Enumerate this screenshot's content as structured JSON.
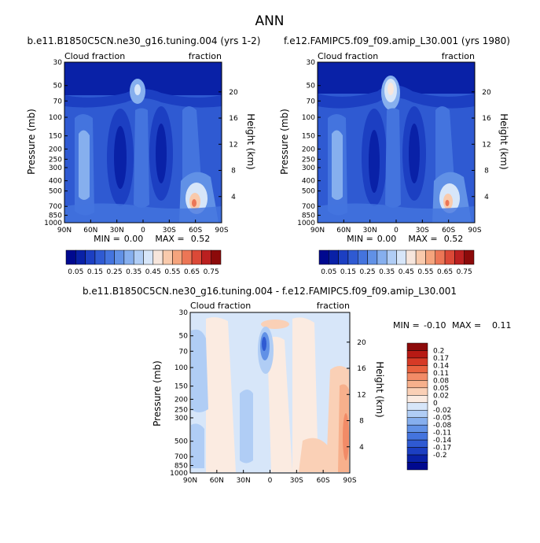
{
  "page_title": "ANN",
  "colors": {
    "cf_scale": [
      "#00098f",
      "#0921a7",
      "#1c3fc2",
      "#2f5ad2",
      "#4474de",
      "#6191e6",
      "#86afee",
      "#b0cdf5",
      "#d7e6f9",
      "#f7e6dc",
      "#f9caac",
      "#f5a47d",
      "#ec7656",
      "#db4937",
      "#bb2020",
      "#8c0a0a"
    ],
    "diff_scale": [
      "#00098f",
      "#0921a7",
      "#1c3fc2",
      "#2f5ad2",
      "#4474de",
      "#6191e6",
      "#86afee",
      "#b0cdf5",
      "#d7e6f9",
      "#fbebe1",
      "#fad0b6",
      "#f7b08c",
      "#f28b67",
      "#e9623f",
      "#d63a26",
      "#b71a14",
      "#8c0a0a"
    ]
  },
  "chart_data": [
    {
      "type": "heatmap",
      "title": "b.e11.B1850C5CN.ne30_g16.tuning.004 (yrs 1-2)",
      "left_label": "Cloud fraction",
      "right_label": "fraction",
      "ylabel": "Pressure (mb)",
      "y2label": "Height (km)",
      "xticks": [
        "90N",
        "60N",
        "30N",
        "0",
        "30S",
        "60S",
        "90S"
      ],
      "yticks": [
        "30",
        "50",
        "70",
        "100",
        "150",
        "200",
        "250",
        "300",
        "400",
        "500",
        "700",
        "850",
        "1000"
      ],
      "y2ticks": [
        "20",
        "16",
        "12",
        "8",
        "4"
      ],
      "min_label": "MIN =",
      "min_value": "0.00",
      "max_label": "MAX =",
      "max_value": "0.52",
      "colorbar_labels": [
        "0.05",
        "0.15",
        "0.25",
        "0.35",
        "0.45",
        "0.55",
        "0.65",
        "0.75"
      ]
    },
    {
      "type": "heatmap",
      "title": "f.e12.FAMIPC5.f09_f09.amip_L30.001 (yrs 1980)",
      "left_label": "Cloud fraction",
      "right_label": "fraction",
      "ylabel": "Pressure (mb)",
      "y2label": "Height (km)",
      "xticks": [
        "90N",
        "60N",
        "30N",
        "0",
        "30S",
        "60S",
        "90S"
      ],
      "yticks": [
        "30",
        "50",
        "70",
        "100",
        "150",
        "200",
        "250",
        "300",
        "400",
        "500",
        "700",
        "850",
        "1000"
      ],
      "y2ticks": [
        "20",
        "16",
        "12",
        "8",
        "4"
      ],
      "min_label": "MIN =",
      "min_value": "0.00",
      "max_label": "MAX =",
      "max_value": "0.52",
      "colorbar_labels": [
        "0.05",
        "0.15",
        "0.25",
        "0.35",
        "0.45",
        "0.55",
        "0.65",
        "0.75"
      ]
    },
    {
      "type": "heatmap",
      "title": "b.e11.B1850C5CN.ne30_g16.tuning.004 - f.e12.FAMIPC5.f09_f09.amip_L30.001",
      "left_label": "Cloud fraction",
      "right_label": "fraction",
      "ylabel": "Pressure (mb)",
      "y2label": "Height (km)",
      "xticks": [
        "90N",
        "60N",
        "30N",
        "0",
        "30S",
        "60S",
        "90S"
      ],
      "yticks": [
        "30",
        "50",
        "70",
        "100",
        "150",
        "200",
        "250",
        "300",
        "500",
        "700",
        "850",
        "1000"
      ],
      "y2ticks": [
        "20",
        "16",
        "12",
        "8",
        "4"
      ],
      "min_label": "MIN =",
      "min_value": "-0.10",
      "max_label": "MAX =",
      "max_value": "0.11",
      "colorbar_labels": [
        "0.2",
        "0.17",
        "0.14",
        "0.11",
        "0.08",
        "0.05",
        "0.02",
        "0",
        "-0.02",
        "-0.05",
        "-0.08",
        "-0.11",
        "-0.14",
        "-0.17",
        "-0.2"
      ]
    }
  ]
}
